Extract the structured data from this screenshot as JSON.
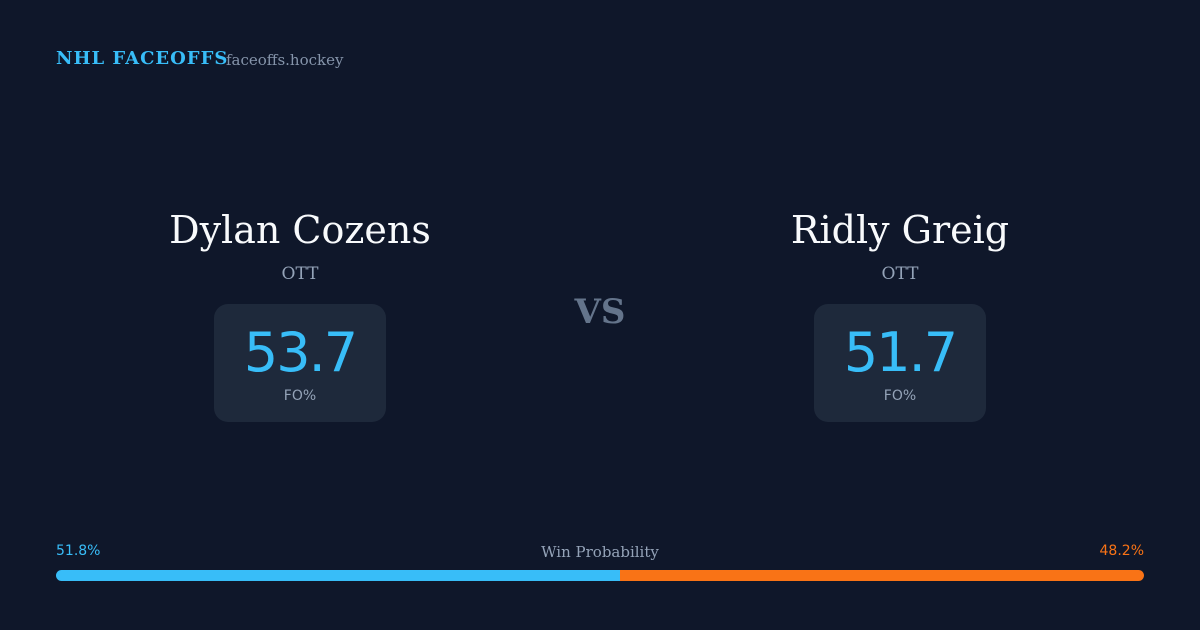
{
  "header": {
    "brand": "NHL FACEOFFS",
    "site": "faceoffs.hockey"
  },
  "players": [
    {
      "name": "Dylan Cozens",
      "team": "OTT",
      "stat": 53.7,
      "stat_label": "FO%",
      "color": "#38bdf8"
    },
    {
      "name": "Ridly Greig",
      "team": "OTT",
      "stat": 51.7,
      "stat_label": "FO%",
      "color": "#38bdf8"
    }
  ],
  "vs": "VS",
  "win_probability": {
    "label": "Win Probability",
    "values": [
      51.8,
      48.2
    ],
    "value_labels": [
      "51.8%",
      "48.2%"
    ],
    "colors": [
      "#38bdf8",
      "#f97316"
    ]
  }
}
